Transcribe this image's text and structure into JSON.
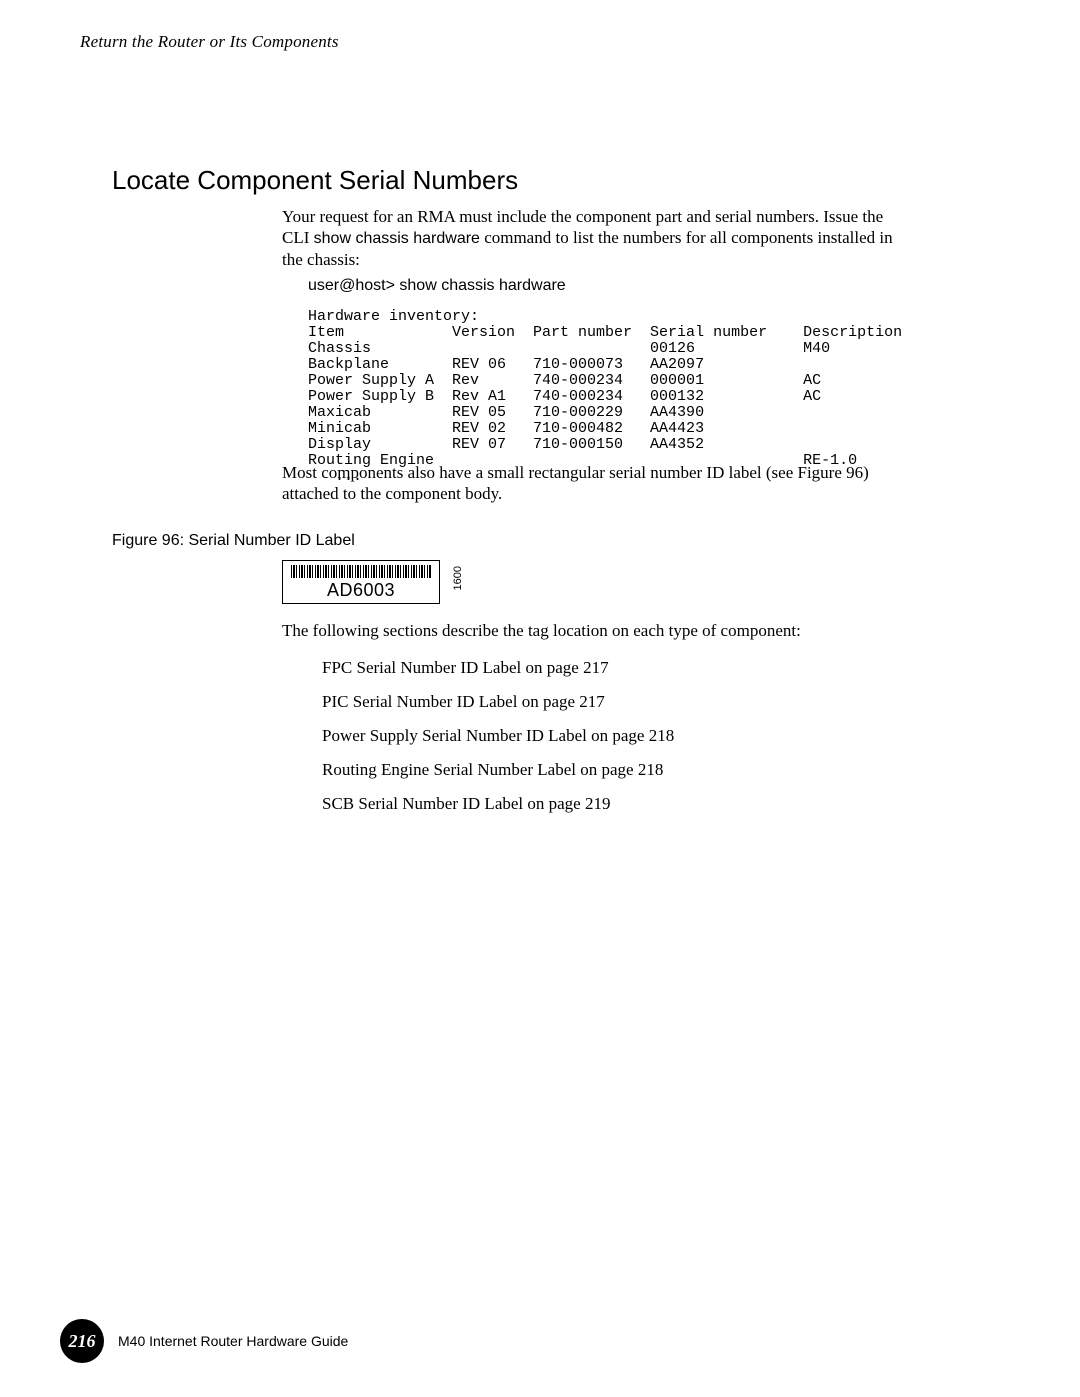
{
  "running_head": "Return the Router or Its Components",
  "section_title": "Locate Component Serial Numbers",
  "intro_before_cmd": "Your request for an RMA must include the component part and serial numbers. Issue the CLI ",
  "cmd_inline": "show chassis hardware",
  "intro_after_cmd": " command to list the numbers for all components installed in the chassis:",
  "cli_prompt": "user@host> show chassis hardware",
  "cli": {
    "header_line": "Hardware inventory:",
    "columns": {
      "item": "Item",
      "version": "Version",
      "part": "Part number",
      "serial": "Serial number",
      "desc": "Description"
    },
    "rows": [
      {
        "item": "Chassis",
        "version": "",
        "part": "",
        "serial": "00126",
        "desc": "M40"
      },
      {
        "item": "Backplane",
        "version": "REV 06",
        "part": "710-000073",
        "serial": "AA2097",
        "desc": ""
      },
      {
        "item": "Power Supply A",
        "version": "Rev",
        "part": "740-000234",
        "serial": "000001",
        "desc": "AC"
      },
      {
        "item": "Power Supply B",
        "version": "Rev A1",
        "part": "740-000234",
        "serial": "000132",
        "desc": "AC"
      },
      {
        "item": "Maxicab",
        "version": "REV 05",
        "part": "710-000229",
        "serial": "AA4390",
        "desc": ""
      },
      {
        "item": "Minicab",
        "version": "REV 02",
        "part": "710-000482",
        "serial": "AA4423",
        "desc": ""
      },
      {
        "item": "Display",
        "version": "REV 07",
        "part": "710-000150",
        "serial": "AA4352",
        "desc": ""
      },
      {
        "item": "Routing Engine",
        "version": "",
        "part": "",
        "serial": "",
        "desc": "RE-1.0"
      }
    ],
    "ellipsis": "   ...",
    "col_widths": {
      "item": 16,
      "version": 9,
      "part": 13,
      "serial": 17,
      "desc": 12
    }
  },
  "after_output": "Most components also have a small rectangular serial number ID label (see Figure 96) attached to the component body.",
  "figure_caption": "Figure 96:  Serial Number ID Label",
  "figure": {
    "serial": "AD6003",
    "side_number": "1600"
  },
  "following_intro": "The following sections describe the tag location on each type of component:",
  "links": [
    "FPC Serial Number ID Label on page 217",
    "PIC Serial Number ID Label on page 217",
    "Power Supply Serial Number ID Label on page 218",
    "Routing Engine Serial Number Label on page 218",
    "SCB Serial Number ID Label on page 219"
  ],
  "footer": {
    "page_number": "216",
    "book_title": "M40 Internet Router Hardware Guide"
  },
  "colors": {
    "text": "#000000",
    "background": "#ffffff",
    "badge_bg": "#000000",
    "badge_fg": "#ffffff"
  }
}
